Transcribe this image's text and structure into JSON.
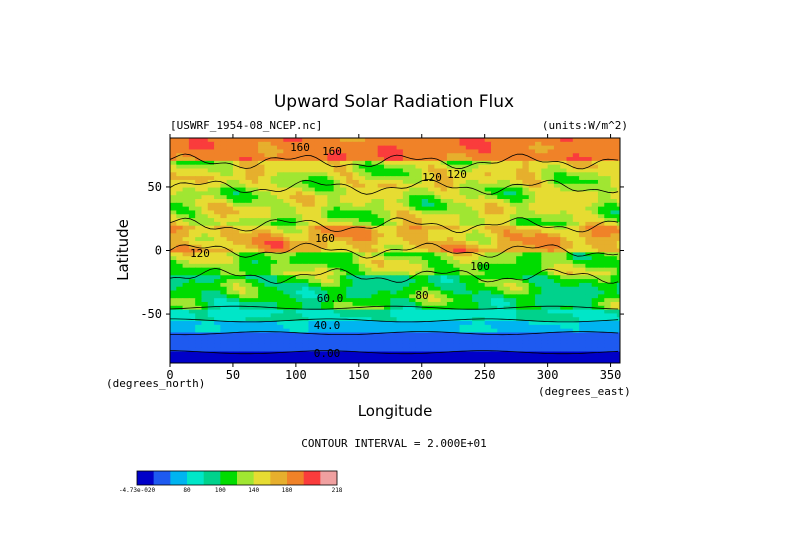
{
  "chart_data": {
    "type": "heatmap",
    "title": "Upward Solar Radiation Flux",
    "dataset_label": "[USWRF_1954-08_NCEP.nc]",
    "units_label": "(units:W/m^2)",
    "xlabel": "Longitude",
    "ylabel": "Latitude",
    "x_unit_label": "(degrees_east)",
    "y_unit_label": "(degrees_north)",
    "xlim": [
      0,
      357.5
    ],
    "ylim": [
      -88.5,
      88.5
    ],
    "x_ticks": [
      0,
      50,
      100,
      150,
      200,
      250,
      300,
      350
    ],
    "y_ticks": [
      50,
      0,
      -50
    ],
    "contour_interval_label": "CONTOUR INTERVAL = 2.000E+01",
    "contour_labels": [
      "160",
      "160",
      "120",
      "120",
      "160",
      "120",
      "60.0",
      "40.0",
      "0.00",
      "80",
      "100"
    ],
    "colorbar": {
      "colors": [
        "#0000c8",
        "#1e5af0",
        "#00b4f0",
        "#00e6c8",
        "#00d28c",
        "#00dc00",
        "#a0e632",
        "#e6dc32",
        "#e6af2d",
        "#f08228",
        "#fa3c3c",
        "#f0a0a0"
      ],
      "tick_labels": [
        "-4.73e-020",
        "80",
        "100",
        "140",
        "180",
        "218"
      ],
      "min": 0,
      "max": 218
    },
    "latitude_band_means": [
      {
        "lat_range": [
          70,
          88.5
        ],
        "value": 175
      },
      {
        "lat_range": [
          50,
          70
        ],
        "value": 130
      },
      {
        "lat_range": [
          20,
          50
        ],
        "value": 125
      },
      {
        "lat_range": [
          0,
          20
        ],
        "value": 150
      },
      {
        "lat_range": [
          -20,
          0
        ],
        "value": 115
      },
      {
        "lat_range": [
          -45,
          -20
        ],
        "value": 95
      },
      {
        "lat_range": [
          -55,
          -45
        ],
        "value": 70
      },
      {
        "lat_range": [
          -65,
          -55
        ],
        "value": 50
      },
      {
        "lat_range": [
          -80,
          -65
        ],
        "value": 25
      },
      {
        "lat_range": [
          -88.5,
          -80
        ],
        "value": 0
      }
    ]
  }
}
